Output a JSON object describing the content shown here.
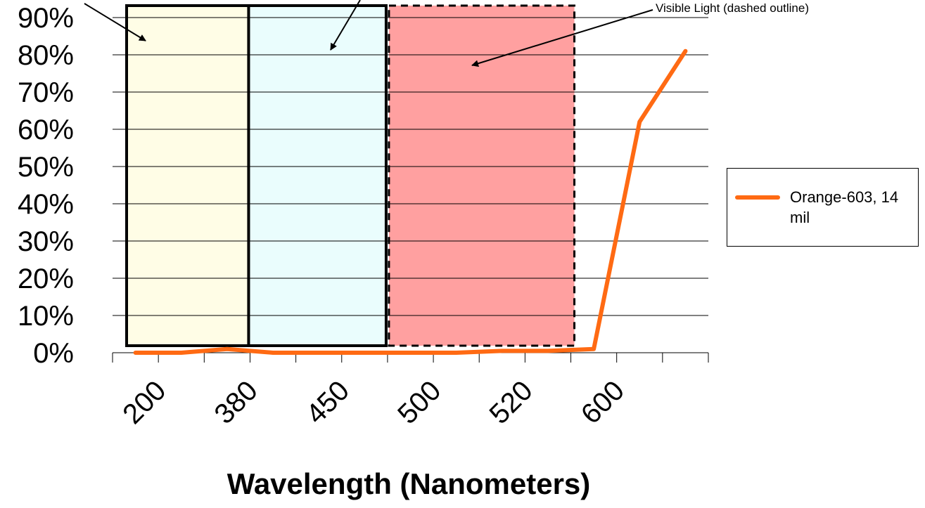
{
  "chart_data": {
    "type": "line",
    "title": "",
    "xlabel": "Wavelength (Nanometers)",
    "ylabel": "",
    "ylim": [
      0,
      90
    ],
    "y_ticks": [
      "0%",
      "10%",
      "20%",
      "30%",
      "40%",
      "50%",
      "60%",
      "70%",
      "80%",
      "90%"
    ],
    "categories": [
      "200",
      "",
      "380",
      "",
      "450",
      "",
      "500",
      "",
      "520",
      "",
      "600",
      "",
      ""
    ],
    "x_tick_labels": [
      "200",
      "380",
      "450",
      "500",
      "520",
      "600"
    ],
    "grid": true,
    "legend_position": "right",
    "series": [
      {
        "name": "Orange-603, 14 mil",
        "color": "#ff6a13",
        "values": [
          0,
          0,
          1,
          0,
          0,
          0,
          0,
          0,
          0.5,
          0.5,
          1,
          62,
          81
        ]
      }
    ],
    "regions": [
      {
        "fill": "#fffde6",
        "border": "solid",
        "from_index": 0,
        "to_index": 3
      },
      {
        "fill": "#eafdfd",
        "border": "solid",
        "from_index": 3,
        "to_index": 6
      },
      {
        "fill": "#ffa0a0",
        "border": "dashed",
        "from_index": 6,
        "to_index": 10
      }
    ],
    "annotations": [
      {
        "text": ""
      },
      {
        "text": ""
      },
      {
        "text": "Visible Light (dashed outline)"
      }
    ]
  }
}
